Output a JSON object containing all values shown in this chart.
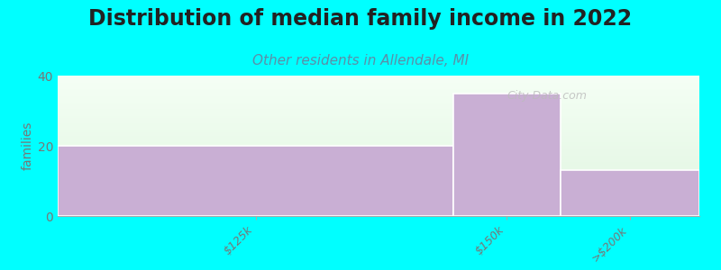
{
  "title": "Distribution of median family income in 2022",
  "subtitle": "Other residents in Allendale, MI",
  "categories": [
    "$125k",
    "$150k",
    ">$200k"
  ],
  "values": [
    20,
    35,
    13
  ],
  "bar_color": "#c9afd4",
  "background_color": "#00ffff",
  "plot_bg_top": "#e8f5e8",
  "plot_bg_bottom": "#f8fff8",
  "ylabel": "families",
  "ylim": [
    0,
    40
  ],
  "yticks": [
    0,
    20,
    40
  ],
  "title_fontsize": 17,
  "subtitle_fontsize": 11,
  "subtitle_color": "#5b8fa8",
  "watermark": "City-Data.com",
  "bar_edges": [
    0,
    0.62,
    0.78,
    1.0
  ],
  "title_color": "#222222"
}
